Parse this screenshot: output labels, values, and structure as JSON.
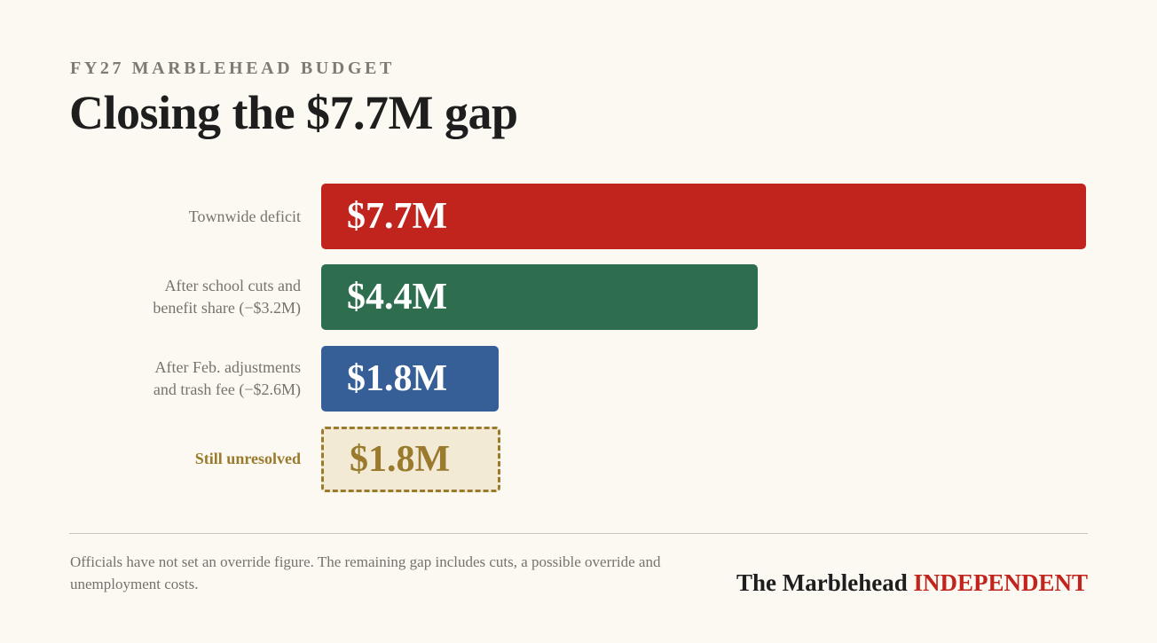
{
  "header": {
    "kicker": "FY27 MARBLEHEAD BUDGET",
    "title": "Closing the $7.7M gap"
  },
  "chart_data": {
    "type": "bar",
    "orientation": "horizontal",
    "xlim": [
      0,
      7.7
    ],
    "unit": "$M",
    "categories": [
      "Townwide deficit",
      "After school cuts and benefit share (−$3.2M)",
      "After Feb. adjustments and trash fee (−$2.6M)",
      "Still unresolved"
    ],
    "label_lines": [
      [
        "Townwide deficit"
      ],
      [
        "After school cuts and",
        "benefit share (−$3.2M)"
      ],
      [
        "After Feb. adjustments",
        "and trash fee (−$2.6M)"
      ],
      [
        "Still unresolved"
      ]
    ],
    "values": [
      7.7,
      4.4,
      1.8,
      1.8
    ],
    "data_labels": [
      "$7.7M",
      "$4.4M",
      "$1.8M",
      "$1.8M"
    ],
    "colors": [
      "#c0241d",
      "#2e6e4f",
      "#365f98",
      "#f3ead6"
    ],
    "styles": [
      "solid",
      "solid",
      "solid",
      "dashed"
    ],
    "accent": "#9a7a2c"
  },
  "footer": {
    "note": "Officials have not set an override figure. The remaining gap includes cuts, a possible override and unemployment costs.",
    "brand_part1": "The Marblehead",
    "brand_part2": "INDEPENDENT"
  }
}
